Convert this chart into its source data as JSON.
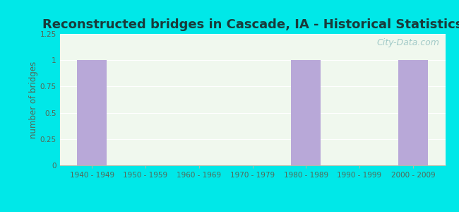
{
  "title": "Reconstructed bridges in Cascade, IA - Historical Statistics",
  "categories": [
    "1940 - 1949",
    "1950 - 1959",
    "1960 - 1969",
    "1970 - 1979",
    "1980 - 1989",
    "1990 - 1999",
    "2000 - 2009"
  ],
  "values": [
    1,
    0,
    0,
    0,
    1,
    0,
    1
  ],
  "bar_color": "#b8a8d8",
  "ylabel": "number of bridges",
  "ylim": [
    0,
    1.25
  ],
  "yticks": [
    0,
    0.25,
    0.5,
    0.75,
    1,
    1.25
  ],
  "background_outer": "#00e8e8",
  "background_inner_top": "#f0f8ee",
  "background_inner": "#dff0dc",
  "title_fontsize": 13,
  "title_color": "#1a3a3a",
  "tick_color": "#556655",
  "watermark": "City-Data.com"
}
